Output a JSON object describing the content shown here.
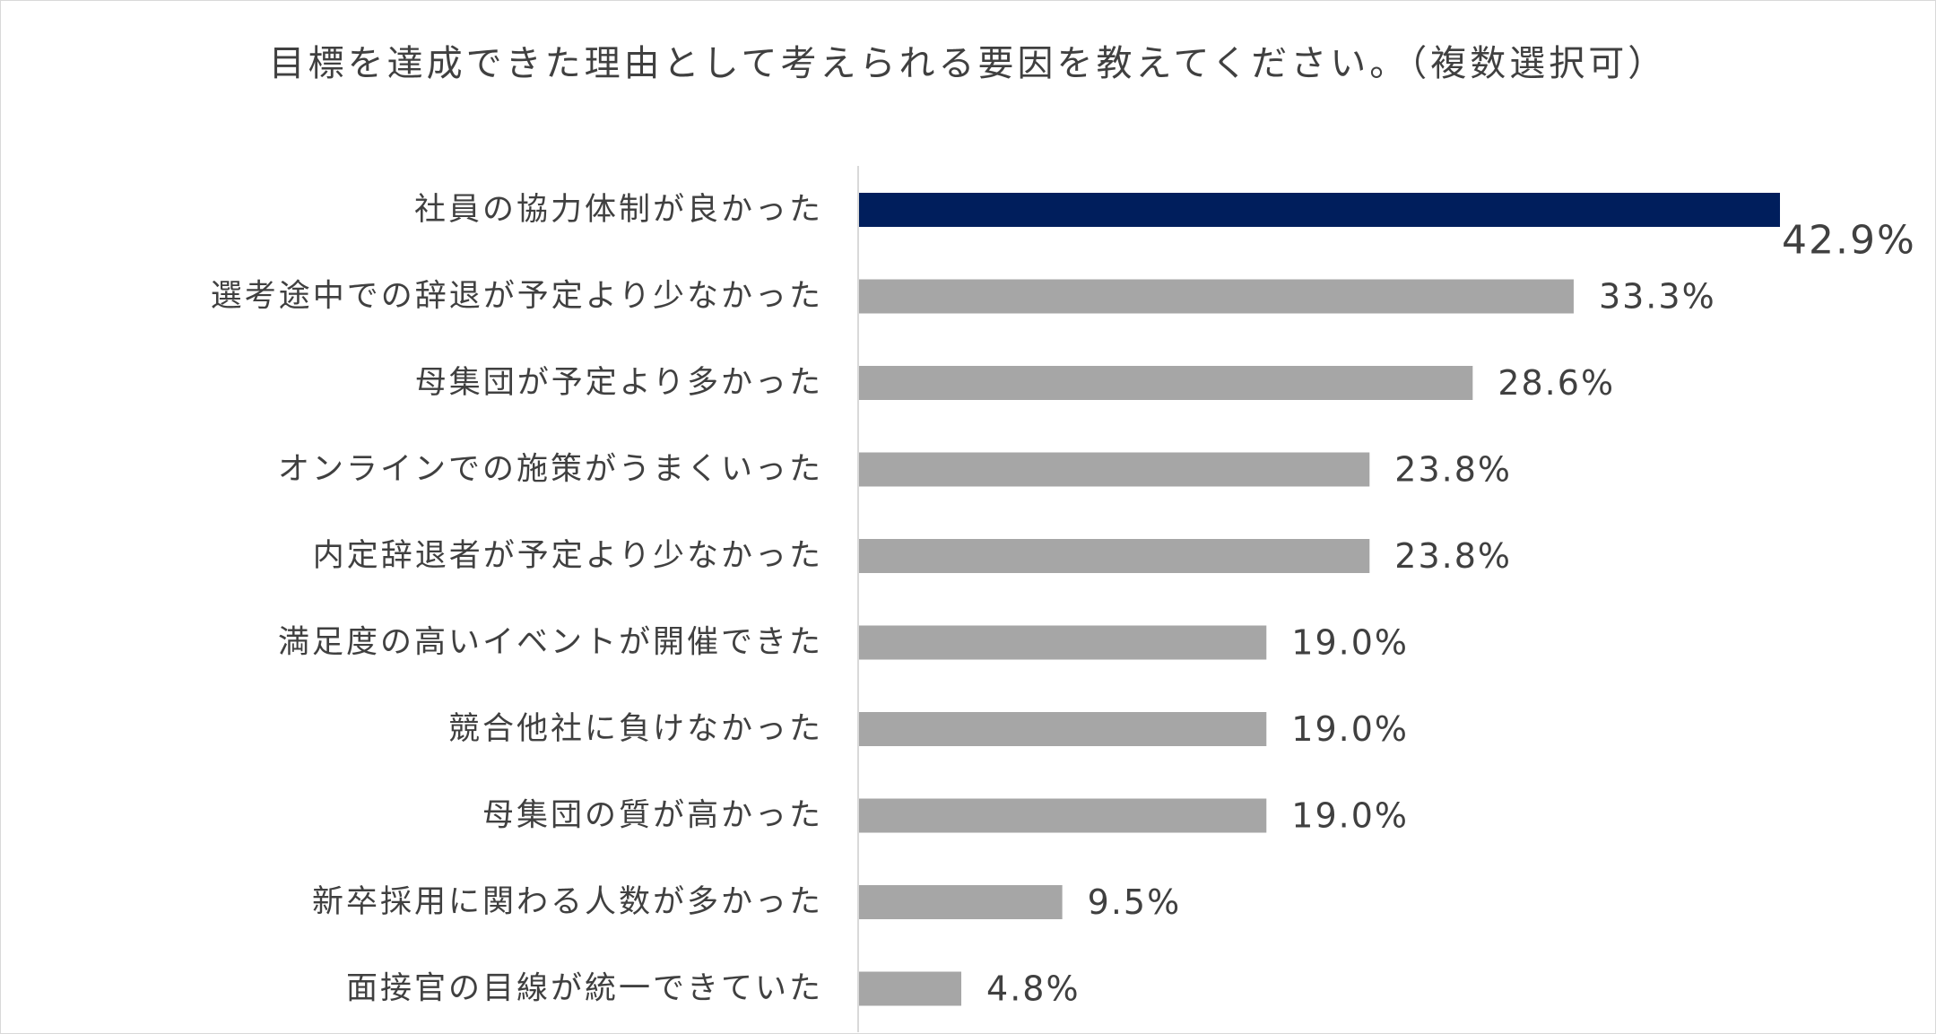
{
  "chart_data": {
    "type": "bar",
    "orientation": "horizontal",
    "title": "目標を達成できた理由として考えられる要因を教えてください。（複数選択可）",
    "categories": [
      "社員の協力体制が良かった",
      "選考途中での辞退が予定より少なかった",
      "母集団が予定より多かった",
      "オンラインでの施策がうまくいった",
      "内定辞退者が予定より少なかった",
      "満足度の高いイベントが開催できた",
      "競合他社に負けなかった",
      "母集団の質が高かった",
      "新卒採用に関わる人数が多かった",
      "面接官の目線が統一できていた"
    ],
    "values": [
      42.9,
      33.3,
      28.6,
      23.8,
      23.8,
      19.0,
      19.0,
      19.0,
      9.5,
      4.8
    ],
    "value_labels": [
      "42.9%",
      "33.3%",
      "28.6%",
      "23.8%",
      "23.8%",
      "19.0%",
      "19.0%",
      "19.0%",
      "9.5%",
      "4.8%"
    ],
    "xlim": [
      0,
      50
    ],
    "highlight_index": 0,
    "colors": {
      "highlight": "#001e5c",
      "default": "#a6a6a6",
      "axis": "#d9d9d9",
      "text": "#404040"
    },
    "grid": false,
    "legend": "none"
  }
}
